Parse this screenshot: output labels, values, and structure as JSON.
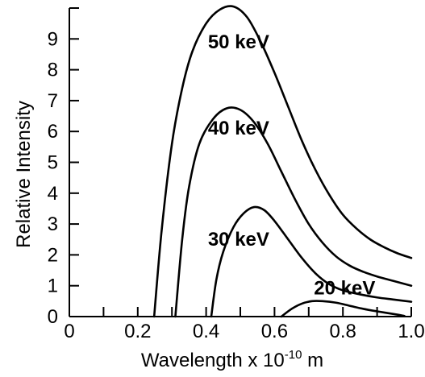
{
  "chart_data": {
    "type": "line",
    "xlabel": "Wavelength x 10",
    "xlabel_exponent": "-10",
    "xlabel_unit": " m",
    "ylabel": "Relative Intensity",
    "xlim": [
      0,
      1.0
    ],
    "ylim": [
      0,
      10
    ],
    "x_ticks": [
      {
        "value": 0,
        "label": "0"
      },
      {
        "value": 0.2,
        "label": "0.2"
      },
      {
        "value": 0.4,
        "label": "0.4"
      },
      {
        "value": 0.6,
        "label": "0.6"
      },
      {
        "value": 0.8,
        "label": "0.8"
      },
      {
        "value": 1.0,
        "label": "1.0"
      }
    ],
    "x_minor_ticks": [
      0.1,
      0.3,
      0.5,
      0.7,
      0.9
    ],
    "y_ticks": [
      {
        "value": 0,
        "label": "0"
      },
      {
        "value": 1,
        "label": "1"
      },
      {
        "value": 2,
        "label": "2"
      },
      {
        "value": 3,
        "label": "3"
      },
      {
        "value": 4,
        "label": "4"
      },
      {
        "value": 5,
        "label": "5"
      },
      {
        "value": 6,
        "label": "6"
      },
      {
        "value": 7,
        "label": "7"
      },
      {
        "value": 8,
        "label": "8"
      },
      {
        "value": 9,
        "label": "9"
      }
    ],
    "y_minor_ticks": [
      10
    ],
    "grid": false,
    "legend": "none",
    "series": [
      {
        "name": "50 keV",
        "label_at": {
          "x": 0.495,
          "y": 8.7
        },
        "points": [
          [
            0.248,
            0
          ],
          [
            0.27,
            2.8
          ],
          [
            0.3,
            5.6
          ],
          [
            0.33,
            7.4
          ],
          [
            0.36,
            8.6
          ],
          [
            0.4,
            9.5
          ],
          [
            0.44,
            9.95
          ],
          [
            0.48,
            10.05
          ],
          [
            0.52,
            9.7
          ],
          [
            0.56,
            8.9
          ],
          [
            0.6,
            7.9
          ],
          [
            0.64,
            6.8
          ],
          [
            0.68,
            5.7
          ],
          [
            0.72,
            4.75
          ],
          [
            0.76,
            3.95
          ],
          [
            0.8,
            3.3
          ],
          [
            0.84,
            2.85
          ],
          [
            0.88,
            2.5
          ],
          [
            0.92,
            2.25
          ],
          [
            0.96,
            2.05
          ],
          [
            1.0,
            1.9
          ]
        ]
      },
      {
        "name": "40 keV",
        "label_at": {
          "x": 0.495,
          "y": 5.9
        },
        "points": [
          [
            0.31,
            0
          ],
          [
            0.33,
            2.5
          ],
          [
            0.35,
            4.2
          ],
          [
            0.38,
            5.6
          ],
          [
            0.42,
            6.4
          ],
          [
            0.46,
            6.75
          ],
          [
            0.5,
            6.7
          ],
          [
            0.54,
            6.3
          ],
          [
            0.58,
            5.6
          ],
          [
            0.62,
            4.7
          ],
          [
            0.66,
            3.8
          ],
          [
            0.7,
            3.0
          ],
          [
            0.74,
            2.4
          ],
          [
            0.78,
            1.95
          ],
          [
            0.82,
            1.65
          ],
          [
            0.86,
            1.45
          ],
          [
            0.9,
            1.3
          ],
          [
            0.95,
            1.15
          ],
          [
            1.0,
            1.0
          ]
        ]
      },
      {
        "name": "30 keV",
        "label_at": {
          "x": 0.495,
          "y": 2.3
        },
        "points": [
          [
            0.415,
            0
          ],
          [
            0.43,
            1.2
          ],
          [
            0.45,
            2.1
          ],
          [
            0.48,
            2.9
          ],
          [
            0.51,
            3.35
          ],
          [
            0.54,
            3.55
          ],
          [
            0.57,
            3.45
          ],
          [
            0.6,
            3.1
          ],
          [
            0.64,
            2.5
          ],
          [
            0.68,
            1.9
          ],
          [
            0.72,
            1.4
          ],
          [
            0.76,
            1.05
          ],
          [
            0.8,
            0.85
          ],
          [
            0.85,
            0.72
          ],
          [
            0.9,
            0.62
          ],
          [
            0.95,
            0.55
          ],
          [
            1.0,
            0.48
          ]
        ]
      },
      {
        "name": "20 keV",
        "label_at": {
          "x": 0.805,
          "y": 0.72
        },
        "points": [
          [
            0.62,
            0
          ],
          [
            0.65,
            0.25
          ],
          [
            0.68,
            0.42
          ],
          [
            0.71,
            0.5
          ],
          [
            0.74,
            0.5
          ],
          [
            0.78,
            0.45
          ],
          [
            0.82,
            0.35
          ],
          [
            0.86,
            0.25
          ],
          [
            0.9,
            0.17
          ],
          [
            0.95,
            0.08
          ],
          [
            0.98,
            0.02
          ]
        ]
      }
    ]
  }
}
